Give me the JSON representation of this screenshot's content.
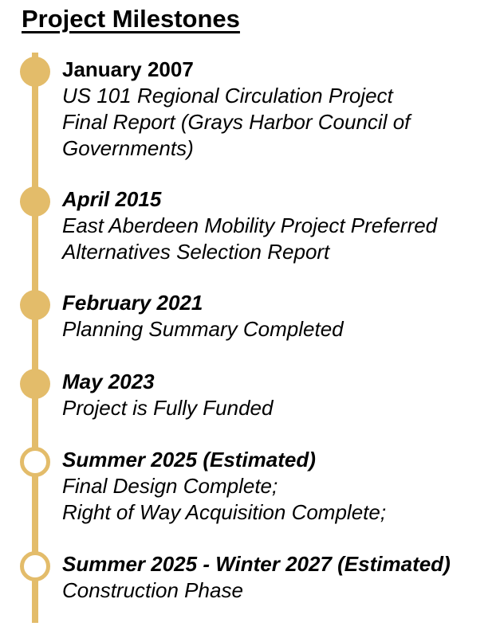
{
  "title": "Project Milestones",
  "colors": {
    "accent": "#e3bc6a",
    "text": "#000000",
    "background": "#ffffff"
  },
  "milestones": [
    {
      "date": "January 2007",
      "description_lines": [
        "US 101 Regional Circulation Project",
        "Final Report (Grays Harbor Council of",
        "Governments)"
      ],
      "status": "completed"
    },
    {
      "date": "April 2015",
      "description_lines": [
        "East Aberdeen Mobility Project Preferred",
        "Alternatives Selection Report"
      ],
      "status": "completed"
    },
    {
      "date": "February 2021",
      "description_lines": [
        "Planning Summary Completed"
      ],
      "status": "completed"
    },
    {
      "date": "May 2023",
      "description_lines": [
        "Project is Fully Funded"
      ],
      "status": "completed"
    },
    {
      "date": "Summer 2025 (Estimated)",
      "description_lines": [
        "Final Design Complete;",
        "Right of Way Acquisition Complete;"
      ],
      "status": "upcoming"
    },
    {
      "date": "Summer 2025 - Winter 2027 (Estimated)",
      "description_lines": [
        "Construction Phase"
      ],
      "status": "upcoming"
    }
  ]
}
